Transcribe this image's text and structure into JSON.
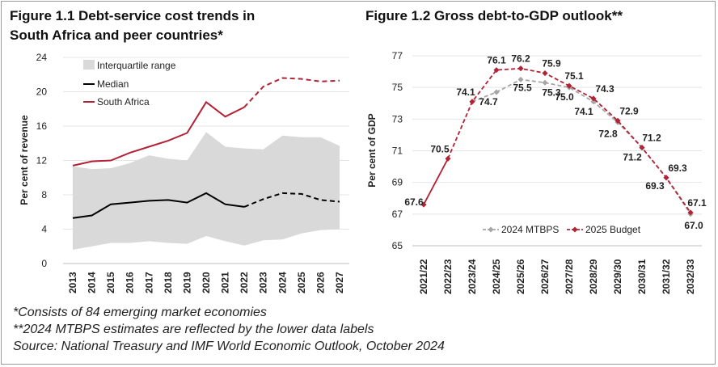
{
  "figure1": {
    "title_line1": "Figure 1.1 Debt-service cost trends in",
    "title_line2": "South Africa and peer countries*"
  },
  "figure2": {
    "title": "Figure 1.2 Gross debt-to-GDP outlook**"
  },
  "notes": [
    "*Consists of 84 emerging market economies",
    "**2024 MTBPS estimates are reflected by the lower data labels",
    "Source: National Treasury and IMF World Economic Outlook, October 2024"
  ],
  "chart_data": [
    {
      "type": "line",
      "ylabel": "Per cent of revenue",
      "ylim": [
        0,
        24
      ],
      "yticks": [
        0,
        4,
        8,
        12,
        16,
        20,
        24
      ],
      "x": [
        "2013",
        "2014",
        "2015",
        "2016",
        "2017",
        "2018",
        "2019",
        "2020",
        "2021",
        "2022",
        "2023",
        "2024",
        "2025",
        "2026",
        "2027"
      ],
      "projection_from": "2022",
      "legend_position": "top-left",
      "band": {
        "name": "Interquartile range",
        "color": "#d9d9d9",
        "lower": [
          1.6,
          2.0,
          2.4,
          2.4,
          2.6,
          2.4,
          2.3,
          3.2,
          2.6,
          2.1,
          2.7,
          2.8,
          3.5,
          3.9,
          4.0
        ],
        "upper": [
          11.3,
          11.0,
          11.1,
          11.7,
          12.6,
          12.2,
          12.0,
          15.3,
          13.6,
          13.4,
          13.3,
          14.9,
          14.7,
          14.7,
          13.7
        ]
      },
      "series": [
        {
          "name": "Median",
          "color": "#000000",
          "values": [
            5.3,
            5.6,
            6.9,
            7.1,
            7.3,
            7.4,
            7.1,
            8.2,
            6.9,
            6.6,
            7.5,
            8.2,
            8.1,
            7.4,
            7.2
          ]
        },
        {
          "name": "South Africa",
          "color": "#b22234",
          "values": [
            11.4,
            11.9,
            12.0,
            12.9,
            13.6,
            14.3,
            15.2,
            18.8,
            17.1,
            18.2,
            20.6,
            21.6,
            21.5,
            21.2,
            21.3
          ]
        }
      ]
    },
    {
      "type": "line",
      "ylabel": "Per cent of GDP",
      "ylim": [
        65,
        77
      ],
      "yticks": [
        65,
        67,
        69,
        71,
        73,
        75,
        77
      ],
      "x": [
        "2021/22",
        "2022/23",
        "2023/24",
        "2024/25",
        "2025/26",
        "2026/27",
        "2027/28",
        "2028/29",
        "2029/30",
        "2030/31",
        "2031/32",
        "2032/33"
      ],
      "legend_position": "bottom-center",
      "series": [
        {
          "name": "2024 MTBPS",
          "color": "#a6a6a6",
          "values": [
            null,
            null,
            74.1,
            74.7,
            75.5,
            75.3,
            75.0,
            74.1,
            72.8,
            71.2,
            69.3,
            67.0
          ]
        },
        {
          "name": "2025 Budget",
          "color": "#b22234",
          "values": [
            67.6,
            70.5,
            74.1,
            76.1,
            76.2,
            75.9,
            75.1,
            74.3,
            72.9,
            71.2,
            69.3,
            67.1
          ]
        }
      ],
      "data_labels": {
        "upper": [
          "67.6",
          "70.5",
          "74.1",
          "76.1",
          "76.2",
          "75.9",
          "75.1",
          "74.3",
          "72.9",
          "71.2",
          "69.3",
          "67.1"
        ],
        "lower": [
          "",
          "",
          "",
          "74.7",
          "75.5",
          "75.3",
          "75.0",
          "74.1",
          "72.8",
          "71.2",
          "69.3",
          "67.0"
        ]
      }
    }
  ]
}
